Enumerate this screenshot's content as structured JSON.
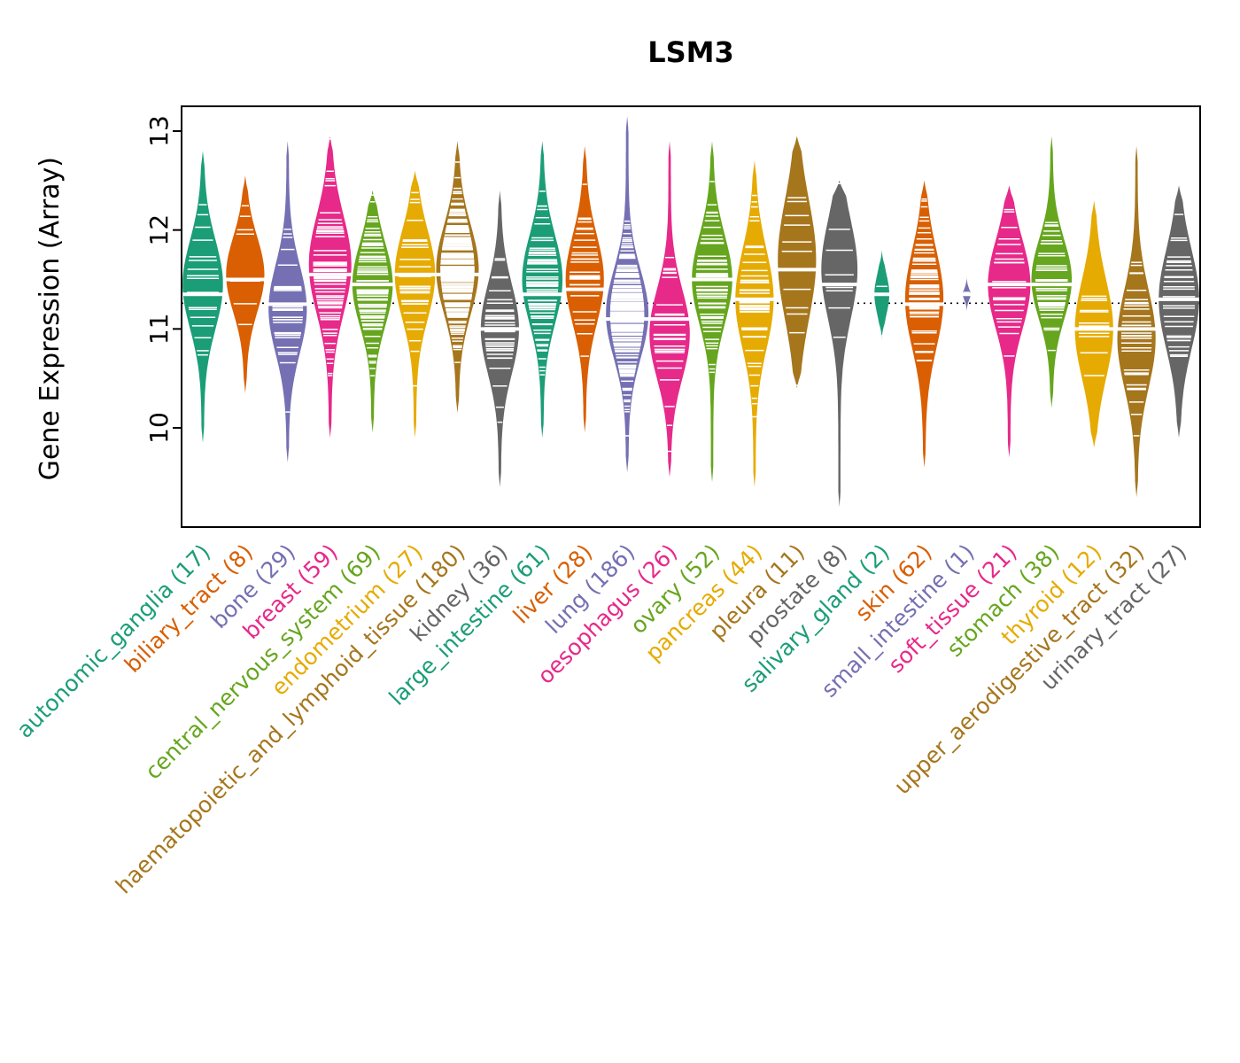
{
  "chart_data": {
    "type": "violin",
    "title": "LSM3",
    "ylabel": "Gene Expression (Array)",
    "xlabel": "",
    "ylim": [
      9.0,
      13.25
    ],
    "yticks": [
      10,
      11,
      12,
      13
    ],
    "reference_line": 11.26,
    "reference_line_style": "dotted",
    "legend": "none",
    "groups": [
      {
        "label": "autonomic_ganglia",
        "n": 17,
        "color": "#1B9E77",
        "min": 9.85,
        "max": 12.8,
        "median": 11.35,
        "peak": 11.45,
        "spread": 0.45,
        "width": 0.95
      },
      {
        "label": "biliary_tract",
        "n": 8,
        "color": "#D95F02",
        "min": 10.35,
        "max": 12.55,
        "median": 11.5,
        "peak": 11.55,
        "spread": 0.38,
        "width": 0.9
      },
      {
        "label": "bone",
        "n": 29,
        "color": "#7570B3",
        "min": 9.65,
        "max": 12.9,
        "median": 11.25,
        "peak": 11.2,
        "spread": 0.45,
        "width": 0.9
      },
      {
        "label": "breast",
        "n": 59,
        "color": "#E7298A",
        "min": 9.9,
        "max": 12.95,
        "median": 11.55,
        "peak": 11.65,
        "spread": 0.5,
        "width": 1.0
      },
      {
        "label": "central_nervous_system",
        "n": 69,
        "color": "#66A61E",
        "min": 9.95,
        "max": 12.4,
        "median": 11.45,
        "peak": 11.45,
        "spread": 0.42,
        "width": 0.95
      },
      {
        "label": "endometrium",
        "n": 27,
        "color": "#E6AB02",
        "min": 9.9,
        "max": 12.6,
        "median": 11.55,
        "peak": 11.55,
        "spread": 0.45,
        "width": 0.95
      },
      {
        "label": "haematopoietic_and_lymphoid_tissue",
        "n": 180,
        "color": "#A6761D",
        "min": 10.15,
        "max": 12.9,
        "median": 11.55,
        "peak": 11.6,
        "spread": 0.45,
        "width": 1.0
      },
      {
        "label": "kidney",
        "n": 36,
        "color": "#666666",
        "min": 9.4,
        "max": 12.4,
        "median": 11.0,
        "peak": 11.0,
        "spread": 0.45,
        "width": 0.9
      },
      {
        "label": "large_intestine",
        "n": 61,
        "color": "#1B9E77",
        "min": 9.9,
        "max": 12.9,
        "median": 11.35,
        "peak": 11.5,
        "spread": 0.45,
        "width": 0.95
      },
      {
        "label": "liver",
        "n": 28,
        "color": "#D95F02",
        "min": 9.95,
        "max": 12.85,
        "median": 11.4,
        "peak": 11.5,
        "spread": 0.45,
        "width": 0.9
      },
      {
        "label": "lung",
        "n": 186,
        "color": "#7570B3",
        "min": 9.55,
        "max": 13.15,
        "median": 11.1,
        "peak": 11.15,
        "spread": 0.45,
        "width": 1.0
      },
      {
        "label": "oesophagus",
        "n": 26,
        "color": "#E7298A",
        "min": 9.5,
        "max": 12.9,
        "median": 11.1,
        "peak": 10.95,
        "spread": 0.45,
        "width": 0.95
      },
      {
        "label": "ovary",
        "n": 52,
        "color": "#66A61E",
        "min": 9.45,
        "max": 12.9,
        "median": 11.5,
        "peak": 11.5,
        "spread": 0.45,
        "width": 0.95
      },
      {
        "label": "pancreas",
        "n": 44,
        "color": "#E6AB02",
        "min": 9.4,
        "max": 12.7,
        "median": 11.3,
        "peak": 11.3,
        "spread": 0.5,
        "width": 0.9
      },
      {
        "label": "pleura",
        "n": 11,
        "color": "#A6761D",
        "min": 10.4,
        "max": 12.95,
        "median": 11.6,
        "peak": 11.7,
        "spread": 0.6,
        "width": 0.9
      },
      {
        "label": "prostate",
        "n": 8,
        "color": "#666666",
        "min": 9.2,
        "max": 12.5,
        "median": 11.45,
        "peak": 11.6,
        "spread": 0.5,
        "width": 0.85
      },
      {
        "label": "salivary_gland",
        "n": 2,
        "color": "#1B9E77",
        "min": 10.9,
        "max": 11.8,
        "median": 11.35,
        "peak": 11.35,
        "spread": 0.2,
        "width": 0.35
      },
      {
        "label": "skin",
        "n": 62,
        "color": "#D95F02",
        "min": 9.6,
        "max": 12.5,
        "median": 11.25,
        "peak": 11.3,
        "spread": 0.5,
        "width": 0.9
      },
      {
        "label": "small_intestine",
        "n": 1,
        "color": "#7570B3",
        "min": 11.18,
        "max": 11.52,
        "median": 11.35,
        "peak": 11.35,
        "spread": 0.09,
        "width": 0.18
      },
      {
        "label": "soft_tissue",
        "n": 21,
        "color": "#E7298A",
        "min": 9.7,
        "max": 12.45,
        "median": 11.45,
        "peak": 11.45,
        "spread": 0.45,
        "width": 1.0
      },
      {
        "label": "stomach",
        "n": 38,
        "color": "#66A61E",
        "min": 10.2,
        "max": 12.95,
        "median": 11.45,
        "peak": 11.5,
        "spread": 0.4,
        "width": 0.95
      },
      {
        "label": "thyroid",
        "n": 12,
        "color": "#E6AB02",
        "min": 9.8,
        "max": 12.3,
        "median": 11.0,
        "peak": 11.0,
        "spread": 0.5,
        "width": 0.9
      },
      {
        "label": "upper_aerodigestive_tract",
        "n": 32,
        "color": "#A6761D",
        "min": 9.3,
        "max": 12.85,
        "median": 11.0,
        "peak": 10.9,
        "spread": 0.5,
        "width": 0.9
      },
      {
        "label": "urinary_tract",
        "n": 27,
        "color": "#666666",
        "min": 9.9,
        "max": 12.45,
        "median": 11.3,
        "peak": 11.3,
        "spread": 0.5,
        "width": 0.95
      }
    ]
  }
}
